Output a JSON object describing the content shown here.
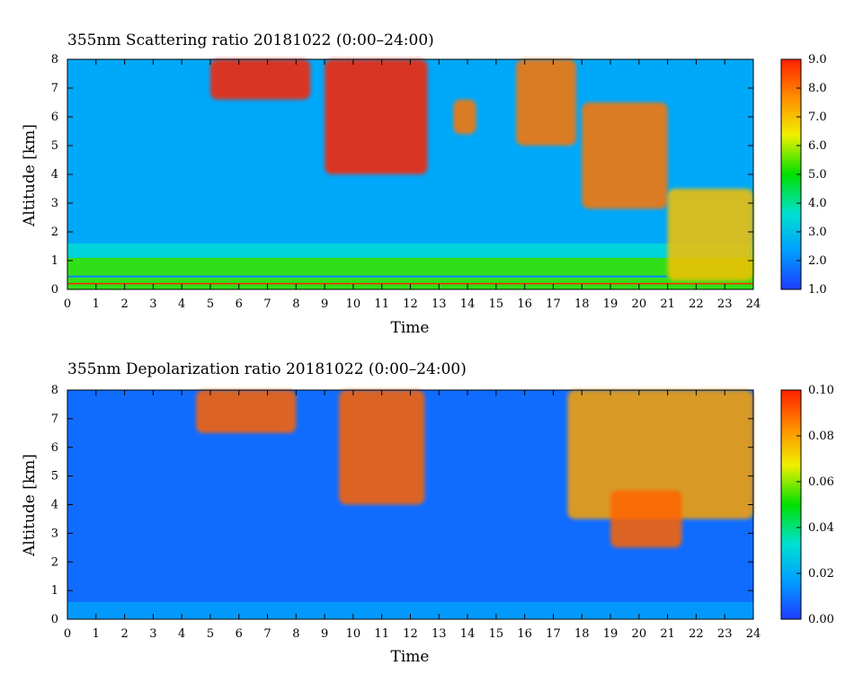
{
  "chart_data": [
    {
      "type": "heatmap",
      "title": "355nm Scattering ratio  20181022 (0:00–24:00)",
      "xlabel": "Time",
      "ylabel": "Altitude [km]",
      "xlim": [
        0,
        24
      ],
      "ylim": [
        0,
        8
      ],
      "x_ticks": [
        "0",
        "1",
        "2",
        "3",
        "4",
        "5",
        "6",
        "7",
        "8",
        "9",
        "10",
        "11",
        "12",
        "13",
        "14",
        "15",
        "16",
        "17",
        "18",
        "19",
        "20",
        "21",
        "22",
        "23",
        "24"
      ],
      "y_ticks": [
        "0",
        "1",
        "2",
        "3",
        "4",
        "5",
        "6",
        "7",
        "8"
      ],
      "colorbar": {
        "range": [
          1.0,
          9.0
        ],
        "ticks": [
          "1.0",
          "2.0",
          "3.0",
          "4.0",
          "5.0",
          "6.0",
          "7.0",
          "8.0",
          "9.0"
        ],
        "colors": [
          "#1e3cff",
          "#00a0ff",
          "#00e0d0",
          "#00e000",
          "#f0f000",
          "#ff9000",
          "#ff2000"
        ]
      },
      "background_value": 2.5,
      "boundary_layer": {
        "top_km": 1.1,
        "peak_value": 5.3
      },
      "cloud_features": [
        {
          "time": [
            5.0,
            8.5
          ],
          "alt": [
            6.6,
            8.0
          ],
          "value": 9
        },
        {
          "time": [
            9.0,
            12.6
          ],
          "alt": [
            4.0,
            8.0
          ],
          "value": 9
        },
        {
          "time": [
            13.5,
            14.3
          ],
          "alt": [
            5.4,
            6.6
          ],
          "value": 8
        },
        {
          "time": [
            15.7,
            17.8
          ],
          "alt": [
            5.0,
            8.0
          ],
          "value": 8
        },
        {
          "time": [
            18.0,
            21.0
          ],
          "alt": [
            2.8,
            6.5
          ],
          "value": 8
        },
        {
          "time": [
            21.0,
            24.0
          ],
          "alt": [
            0.3,
            3.5
          ],
          "value": 7
        }
      ]
    },
    {
      "type": "heatmap",
      "title": "355nm Depolarization ratio  20181022 (0:00–24:00)",
      "xlabel": "Time",
      "ylabel": "Altitude [km]",
      "xlim": [
        0,
        24
      ],
      "ylim": [
        0,
        8
      ],
      "x_ticks": [
        "0",
        "1",
        "2",
        "3",
        "4",
        "5",
        "6",
        "7",
        "8",
        "9",
        "10",
        "11",
        "12",
        "13",
        "14",
        "15",
        "16",
        "17",
        "18",
        "19",
        "20",
        "21",
        "22",
        "23",
        "24"
      ],
      "y_ticks": [
        "0",
        "1",
        "2",
        "3",
        "4",
        "5",
        "6",
        "7",
        "8"
      ],
      "colorbar": {
        "range": [
          0.0,
          0.1
        ],
        "ticks": [
          "0.00",
          "0.02",
          "0.04",
          "0.06",
          "0.08",
          "0.10"
        ],
        "colors": [
          "#1e3cff",
          "#00a0ff",
          "#00e0d0",
          "#00e000",
          "#f0f000",
          "#ff9000",
          "#ff2000"
        ]
      },
      "background_value": 0.008,
      "cloud_features": [
        {
          "time": [
            4.5,
            8.0
          ],
          "alt": [
            6.5,
            8.0
          ],
          "value": 0.09
        },
        {
          "time": [
            9.5,
            12.5
          ],
          "alt": [
            4.0,
            8.0
          ],
          "value": 0.09
        },
        {
          "time": [
            17.5,
            24.0
          ],
          "alt": [
            3.5,
            8.0
          ],
          "value": 0.08
        },
        {
          "time": [
            19.0,
            21.5
          ],
          "alt": [
            2.5,
            4.5
          ],
          "value": 0.09
        }
      ]
    }
  ]
}
